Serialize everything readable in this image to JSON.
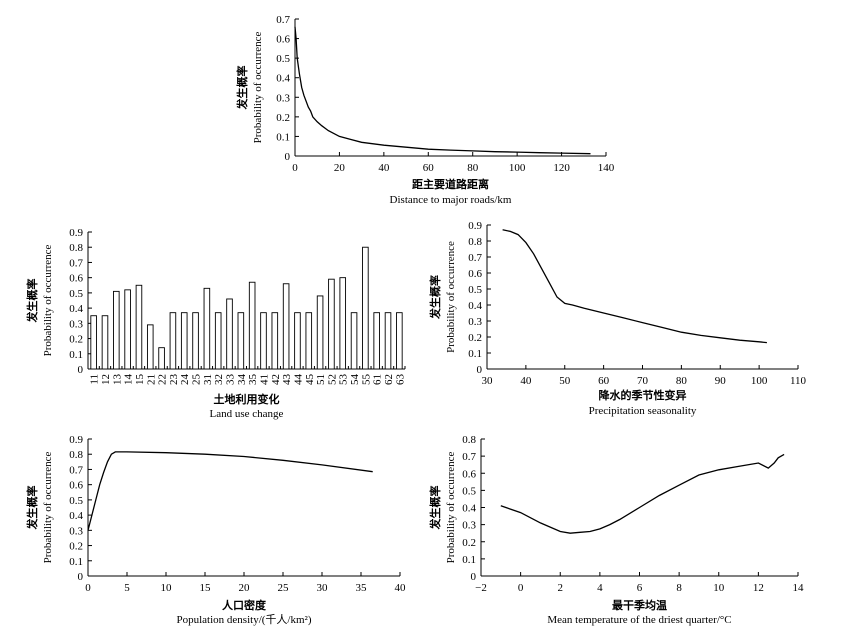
{
  "chart_data": [
    {
      "type": "line",
      "xlabel_cn": "距主要道路距离",
      "xlabel_en": "Distance to major roads/km",
      "ylabel_cn": "发生概率",
      "ylabel_en": "Probability of occurrence",
      "xlim": [
        0,
        140
      ],
      "ylim": [
        0,
        0.7
      ],
      "xticks": [
        "0",
        "20",
        "40",
        "60",
        "80",
        "100",
        "120",
        "140"
      ],
      "yticks": [
        "0",
        "0.1",
        "0.2",
        "0.3",
        "0.4",
        "0.5",
        "0.6",
        "0.7"
      ],
      "x": [
        0,
        0.5,
        1,
        2,
        3,
        4,
        5,
        6,
        7,
        8,
        10,
        12,
        15,
        20,
        25,
        30,
        40,
        50,
        60,
        70,
        80,
        90,
        100,
        110,
        120,
        133
      ],
      "y": [
        0.66,
        0.6,
        0.5,
        0.42,
        0.35,
        0.31,
        0.28,
        0.25,
        0.23,
        0.2,
        0.175,
        0.155,
        0.13,
        0.1,
        0.085,
        0.07,
        0.055,
        0.045,
        0.035,
        0.03,
        0.026,
        0.022,
        0.02,
        0.017,
        0.015,
        0.012
      ]
    },
    {
      "type": "bar",
      "xlabel_cn": "土地利用变化",
      "xlabel_en": "Land use change",
      "ylabel_cn": "发生概率",
      "ylabel_en": "Probability of occurrence",
      "ylim": [
        0,
        0.9
      ],
      "yticks": [
        "0",
        "0.1",
        "0.2",
        "0.3",
        "0.4",
        "0.5",
        "0.6",
        "0.7",
        "0.8",
        "0.9"
      ],
      "categories": [
        "11",
        "12",
        "13",
        "14",
        "15",
        "21",
        "22",
        "23",
        "24",
        "25",
        "31",
        "32",
        "33",
        "34",
        "35",
        "41",
        "42",
        "43",
        "44",
        "45",
        "51",
        "52",
        "53",
        "54",
        "55",
        "61",
        "62",
        "63"
      ],
      "values": [
        0.35,
        0.35,
        0.51,
        0.52,
        0.55,
        0.29,
        0.14,
        0.37,
        0.37,
        0.37,
        0.53,
        0.37,
        0.46,
        0.37,
        0.57,
        0.37,
        0.37,
        0.56,
        0.37,
        0.37,
        0.48,
        0.59,
        0.6,
        0.37,
        0.8,
        0.37,
        0.37,
        0.37
      ]
    },
    {
      "type": "line",
      "xlabel_cn": "降水的季节性变异",
      "xlabel_en": "Precipitation seasonality",
      "ylabel_cn": "发生概率",
      "ylabel_en": "Probability of occurrence",
      "xlim": [
        30,
        110
      ],
      "ylim": [
        0,
        0.9
      ],
      "xticks": [
        "30",
        "40",
        "50",
        "60",
        "70",
        "80",
        "90",
        "100",
        "110"
      ],
      "yticks": [
        "0",
        "0.1",
        "0.2",
        "0.3",
        "0.4",
        "0.5",
        "0.6",
        "0.7",
        "0.8",
        "0.9"
      ],
      "x": [
        34,
        36,
        38,
        40,
        42,
        44,
        46,
        48,
        50,
        52,
        55,
        60,
        65,
        70,
        75,
        80,
        85,
        90,
        95,
        100,
        102
      ],
      "y": [
        0.87,
        0.86,
        0.84,
        0.79,
        0.72,
        0.63,
        0.54,
        0.45,
        0.41,
        0.4,
        0.38,
        0.35,
        0.32,
        0.29,
        0.26,
        0.23,
        0.21,
        0.195,
        0.18,
        0.17,
        0.165
      ]
    },
    {
      "type": "line",
      "xlabel_cn": "人口密度",
      "xlabel_en": "Population density/(千人/km²)",
      "ylabel_cn": "发生概率",
      "ylabel_en": "Probability of occurrence",
      "xlim": [
        0,
        40
      ],
      "ylim": [
        0,
        0.9
      ],
      "xticks": [
        "0",
        "5",
        "10",
        "15",
        "20",
        "25",
        "30",
        "35",
        "40"
      ],
      "yticks": [
        "0",
        "0.1",
        "0.2",
        "0.3",
        "0.4",
        "0.5",
        "0.6",
        "0.7",
        "0.8",
        "0.9"
      ],
      "x": [
        0,
        0.5,
        1,
        1.5,
        2,
        2.5,
        3,
        3.5,
        5,
        10,
        15,
        20,
        25,
        30,
        36.5
      ],
      "y": [
        0.3,
        0.4,
        0.5,
        0.6,
        0.68,
        0.75,
        0.8,
        0.815,
        0.815,
        0.81,
        0.8,
        0.785,
        0.76,
        0.73,
        0.685
      ]
    },
    {
      "type": "line",
      "xlabel_cn": "最干季均温",
      "xlabel_en": "Mean temperature of the driest quarter/°C",
      "ylabel_cn": "发生概率",
      "ylabel_en": "Probability of occurrence",
      "xlim": [
        -2,
        14
      ],
      "ylim": [
        0,
        0.8
      ],
      "xticks": [
        "−2",
        "0",
        "2",
        "4",
        "6",
        "8",
        "10",
        "12",
        "14"
      ],
      "yticks": [
        "0",
        "0.1",
        "0.2",
        "0.3",
        "0.4",
        "0.5",
        "0.6",
        "0.7",
        "0.8"
      ],
      "x": [
        -1,
        0,
        1,
        2,
        2.5,
        3,
        3.5,
        4,
        4.5,
        5,
        6,
        7,
        8,
        9,
        10,
        11,
        12,
        12.5,
        12.8,
        13,
        13.3
      ],
      "y": [
        0.41,
        0.37,
        0.31,
        0.26,
        0.25,
        0.255,
        0.26,
        0.275,
        0.3,
        0.33,
        0.4,
        0.47,
        0.53,
        0.59,
        0.62,
        0.64,
        0.66,
        0.63,
        0.66,
        0.69,
        0.71
      ]
    }
  ]
}
